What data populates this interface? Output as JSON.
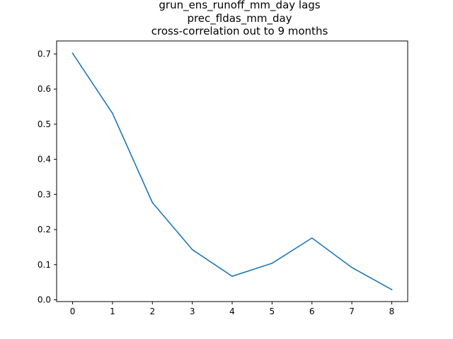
{
  "chart_data": {
    "type": "line",
    "title_lines": [
      "grun_ens_runoff_mm_day lags",
      "prec_fldas_mm_day",
      "cross-correlation out to 9 months"
    ],
    "xlabel": "",
    "ylabel": "",
    "x": [
      0,
      1,
      2,
      3,
      4,
      5,
      6,
      7,
      8
    ],
    "series": [
      {
        "values": [
          0.702,
          0.531,
          0.277,
          0.143,
          0.067,
          0.104,
          0.176,
          0.092,
          0.029
        ],
        "color": "#1f77b4"
      }
    ],
    "xlim": [
      -0.4,
      8.4
    ],
    "ylim": [
      -0.005,
      0.737
    ],
    "xticks": [
      0,
      1,
      2,
      3,
      4,
      5,
      6,
      7,
      8
    ],
    "xtick_labels": [
      "0",
      "1",
      "2",
      "3",
      "4",
      "5",
      "6",
      "7",
      "8"
    ],
    "yticks": [
      0.0,
      0.1,
      0.2,
      0.3,
      0.4,
      0.5,
      0.6,
      0.7
    ],
    "ytick_labels": [
      "0.0",
      "0.1",
      "0.2",
      "0.3",
      "0.4",
      "0.5",
      "0.6",
      "0.7"
    ],
    "grid": false,
    "legend": "none"
  }
}
